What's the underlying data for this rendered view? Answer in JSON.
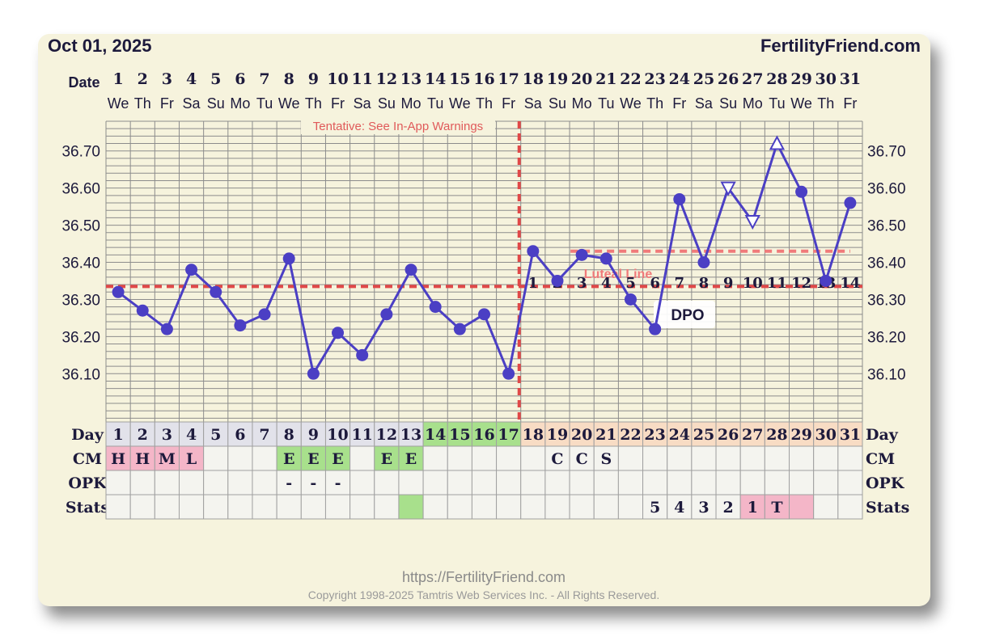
{
  "header": {
    "date": "Oct 01, 2025",
    "site": "FertilityFriend.com"
  },
  "labels": {
    "date": "Date",
    "day": "Day",
    "cm": "CM",
    "opk": "OPK",
    "stats": "Stats",
    "dpo": "DPO",
    "luteal": "Luteal Line",
    "tentative": "Tentative: See In-App Warnings"
  },
  "footer": {
    "url": "https://FertilityFriend.com",
    "copyright": "Copyright 1998-2025 Tamtris Web Services Inc. - All Rights Reserved."
  },
  "colors": {
    "line": "#4b3fc4",
    "coverline": "#e04848",
    "cm_pink": "#f4b6c8",
    "cm_green": "#a8e08c",
    "fertile_green": "#a8e08c",
    "luteal_peach": "#f8dcc4",
    "follicular_gray": "#e2e2ea",
    "cell_bg": "#f4f4ef",
    "text": "#1d1a3c"
  },
  "chart_data": {
    "type": "line",
    "title": "Oct 01, 2025",
    "x": [
      1,
      2,
      3,
      4,
      5,
      6,
      7,
      8,
      9,
      10,
      11,
      12,
      13,
      14,
      15,
      16,
      17,
      18,
      19,
      20,
      21,
      22,
      23,
      24,
      25,
      26,
      27,
      28,
      29,
      30,
      31
    ],
    "weekdays": [
      "We",
      "Th",
      "Fr",
      "Sa",
      "Su",
      "Mo",
      "Tu",
      "We",
      "Th",
      "Fr",
      "Sa",
      "Su",
      "Mo",
      "Tu",
      "We",
      "Th",
      "Fr",
      "Sa",
      "Su",
      "Mo",
      "Tu",
      "We",
      "Th",
      "Fr",
      "Sa",
      "Su",
      "Mo",
      "Tu",
      "We",
      "Th",
      "Fr"
    ],
    "y_ticks": [
      "36.10",
      "36.20",
      "36.30",
      "36.40",
      "36.50",
      "36.60",
      "36.70"
    ],
    "ylim": [
      35.97,
      36.78
    ],
    "series": [
      {
        "values": [
          36.32,
          36.27,
          36.22,
          36.38,
          36.32,
          36.23,
          36.26,
          36.41,
          36.1,
          36.21,
          36.15,
          36.26,
          36.38,
          36.28,
          36.22,
          36.26,
          36.1,
          36.43,
          36.35,
          36.42,
          36.41,
          36.3,
          36.22,
          null,
          null,
          null,
          null,
          null,
          null,
          null,
          null
        ],
        "markers": [
          "c",
          "c",
          "c",
          "c",
          "c",
          "c",
          "c",
          "c",
          "c",
          "c",
          "c",
          "c",
          "c",
          "c",
          "c",
          "c",
          "c",
          "c",
          "c",
          "c",
          "c",
          "c",
          "c"
        ]
      },
      {
        "x": [
          23,
          24,
          25,
          26,
          27,
          28,
          29,
          30,
          31
        ],
        "values": [
          36.22,
          36.57,
          36.4,
          36.6,
          36.51,
          36.72,
          36.59,
          36.35,
          36.56
        ],
        "markers": [
          "c",
          "c",
          "c",
          "vdown",
          "vdown",
          "vup",
          "c",
          "c",
          "c"
        ]
      }
    ],
    "coverline": 36.335,
    "luteal_line": 36.43,
    "ovulation_day": 17,
    "dpo": [
      {
        "day": 18,
        "label": "1"
      },
      {
        "day": 19,
        "label": "2"
      },
      {
        "day": 20,
        "label": "3"
      },
      {
        "day": 21,
        "label": "4"
      },
      {
        "day": 22,
        "label": "5"
      },
      {
        "day": 23,
        "label": "6"
      },
      {
        "day": 24,
        "label": "7"
      },
      {
        "day": 25,
        "label": "8"
      },
      {
        "day": 26,
        "label": "9"
      },
      {
        "day": 27,
        "label": "10"
      },
      {
        "day": 28,
        "label": "11"
      },
      {
        "day": 29,
        "label": "12"
      },
      {
        "day": 30,
        "label": "13"
      },
      {
        "day": 31,
        "label": "14"
      }
    ],
    "cycle_day_phase": [
      "g",
      "g",
      "g",
      "g",
      "g",
      "g",
      "g",
      "g",
      "g",
      "g",
      "g",
      "g",
      "g",
      "f",
      "f",
      "f",
      "f",
      "l",
      "l",
      "l",
      "l",
      "l",
      "l",
      "l",
      "l",
      "l",
      "l",
      "l",
      "l",
      "l",
      "l"
    ],
    "cm": [
      {
        "v": "H",
        "c": "p"
      },
      {
        "v": "H",
        "c": "p"
      },
      {
        "v": "M",
        "c": "p"
      },
      {
        "v": "L",
        "c": "p"
      },
      {
        "v": "",
        "c": ""
      },
      {
        "v": "",
        "c": ""
      },
      {
        "v": "",
        "c": ""
      },
      {
        "v": "E",
        "c": "g"
      },
      {
        "v": "E",
        "c": "g"
      },
      {
        "v": "E",
        "c": "g"
      },
      {
        "v": "",
        "c": ""
      },
      {
        "v": "E",
        "c": "g"
      },
      {
        "v": "E",
        "c": "g"
      },
      {
        "v": "",
        "c": ""
      },
      {
        "v": "",
        "c": ""
      },
      {
        "v": "",
        "c": ""
      },
      {
        "v": "",
        "c": ""
      },
      {
        "v": "",
        "c": ""
      },
      {
        "v": "C",
        "c": ""
      },
      {
        "v": "C",
        "c": ""
      },
      {
        "v": "S",
        "c": ""
      },
      {
        "v": "",
        "c": ""
      },
      {
        "v": "",
        "c": ""
      },
      {
        "v": "",
        "c": ""
      },
      {
        "v": "",
        "c": ""
      },
      {
        "v": "",
        "c": ""
      },
      {
        "v": "",
        "c": ""
      },
      {
        "v": "",
        "c": ""
      },
      {
        "v": "",
        "c": ""
      },
      {
        "v": "",
        "c": ""
      },
      {
        "v": "",
        "c": ""
      }
    ],
    "opk": [
      "",
      "",
      "",
      "",
      "",
      "",
      "",
      "-",
      "-",
      "-",
      "",
      "",
      "",
      "",
      "",
      "",
      "",
      "",
      "",
      "",
      "",
      "",
      "",
      "",
      "",
      "",
      "",
      "",
      "",
      "",
      ""
    ],
    "stats": [
      {
        "v": "",
        "c": ""
      },
      {
        "v": "",
        "c": ""
      },
      {
        "v": "",
        "c": ""
      },
      {
        "v": "",
        "c": ""
      },
      {
        "v": "",
        "c": ""
      },
      {
        "v": "",
        "c": ""
      },
      {
        "v": "",
        "c": ""
      },
      {
        "v": "",
        "c": ""
      },
      {
        "v": "",
        "c": ""
      },
      {
        "v": "",
        "c": ""
      },
      {
        "v": "",
        "c": ""
      },
      {
        "v": "",
        "c": ""
      },
      {
        "v": "",
        "c": "g"
      },
      {
        "v": "",
        "c": ""
      },
      {
        "v": "",
        "c": ""
      },
      {
        "v": "",
        "c": ""
      },
      {
        "v": "",
        "c": ""
      },
      {
        "v": "",
        "c": ""
      },
      {
        "v": "",
        "c": ""
      },
      {
        "v": "",
        "c": ""
      },
      {
        "v": "",
        "c": ""
      },
      {
        "v": "",
        "c": ""
      },
      {
        "v": "5",
        "c": ""
      },
      {
        "v": "4",
        "c": ""
      },
      {
        "v": "3",
        "c": ""
      },
      {
        "v": "2",
        "c": ""
      },
      {
        "v": "1",
        "c": "p"
      },
      {
        "v": "T",
        "c": "p"
      },
      {
        "v": "",
        "c": "p"
      },
      {
        "v": "",
        "c": ""
      },
      {
        "v": "",
        "c": ""
      }
    ]
  }
}
